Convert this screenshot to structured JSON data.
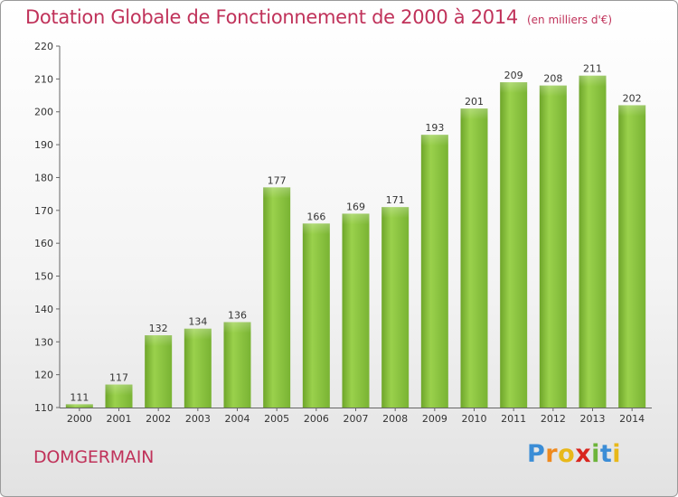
{
  "title": "Dotation Globale de Fonctionnement de 2000 à 2014",
  "unit": "(en milliers d'€)",
  "commune": "DOMGERMAIN",
  "logo": {
    "letters": [
      "P",
      "r",
      "o",
      "x",
      "i",
      "t",
      "i"
    ],
    "colors": [
      "#3b8dd6",
      "#ef8a1e",
      "#e8b819",
      "#d9251e",
      "#6db43b",
      "#3b8dd6",
      "#e8b819"
    ]
  },
  "chart_data": {
    "type": "bar",
    "categories": [
      "2000",
      "2001",
      "2002",
      "2003",
      "2004",
      "2005",
      "2006",
      "2007",
      "2008",
      "2009",
      "2010",
      "2011",
      "2012",
      "2013",
      "2014"
    ],
    "values": [
      111,
      117,
      132,
      134,
      136,
      177,
      166,
      169,
      171,
      193,
      201,
      209,
      208,
      211,
      202
    ],
    "ylim": [
      110,
      220
    ],
    "yticks": [
      110,
      120,
      130,
      140,
      150,
      160,
      170,
      180,
      190,
      200,
      210,
      220
    ],
    "bar_color": "#8cc63f",
    "grid": false,
    "legend": "none"
  }
}
